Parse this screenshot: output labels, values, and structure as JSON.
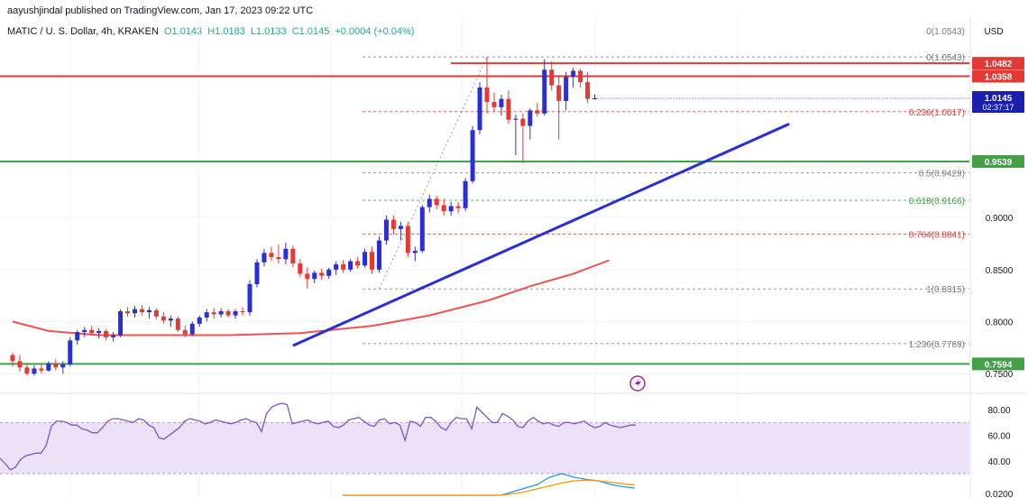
{
  "header": {
    "publisher": "aayushjindal published on TradingView.com, Jan 17, 2023 09:22 UTC",
    "symbol": "MATIC / U. S. Dollar, 4h, KRAKEN",
    "open": "O1.0143",
    "high": "H1.0183",
    "low": "L1.0133",
    "close": "C1.0145",
    "change": "+0.0004 (+0.04%)"
  },
  "colors": {
    "up": "#26a69a",
    "down": "#ef5350",
    "bull_candle": "#2a2ed6",
    "bear_candle": "#e53935",
    "resistance": "#e53935",
    "support": "#43a047",
    "trendline": "#2a2ed6",
    "moving_average": "#ef5350",
    "rsi": "#7e57c2",
    "rsi_band": "#ede1f7",
    "macd_line": "#2196f3",
    "signal_line": "#ff9800",
    "fib_red": "#e53935",
    "fib_green": "#43a047",
    "fib_gray": "#787b86"
  },
  "chart_data": {
    "type": "candlestick",
    "currency_label": "USD",
    "y_axis_ticks": [
      "0.9000",
      "0.8500",
      "0.8000",
      "0.7500"
    ],
    "ylim": [
      0.745,
      1.07
    ],
    "candles": [
      {
        "o": 0.768,
        "h": 0.77,
        "l": 0.757,
        "c": 0.762
      },
      {
        "o": 0.762,
        "h": 0.768,
        "l": 0.752,
        "c": 0.756
      },
      {
        "o": 0.756,
        "h": 0.76,
        "l": 0.748,
        "c": 0.75
      },
      {
        "o": 0.75,
        "h": 0.758,
        "l": 0.748,
        "c": 0.755
      },
      {
        "o": 0.755,
        "h": 0.76,
        "l": 0.75,
        "c": 0.753
      },
      {
        "o": 0.753,
        "h": 0.762,
        "l": 0.752,
        "c": 0.76
      },
      {
        "o": 0.76,
        "h": 0.764,
        "l": 0.753,
        "c": 0.756
      },
      {
        "o": 0.756,
        "h": 0.762,
        "l": 0.75,
        "c": 0.759
      },
      {
        "o": 0.759,
        "h": 0.785,
        "l": 0.757,
        "c": 0.782
      },
      {
        "o": 0.782,
        "h": 0.792,
        "l": 0.778,
        "c": 0.79
      },
      {
        "o": 0.79,
        "h": 0.795,
        "l": 0.785,
        "c": 0.792
      },
      {
        "o": 0.792,
        "h": 0.796,
        "l": 0.787,
        "c": 0.789
      },
      {
        "o": 0.789,
        "h": 0.794,
        "l": 0.784,
        "c": 0.791
      },
      {
        "o": 0.791,
        "h": 0.793,
        "l": 0.782,
        "c": 0.785
      },
      {
        "o": 0.785,
        "h": 0.79,
        "l": 0.781,
        "c": 0.787
      },
      {
        "o": 0.787,
        "h": 0.812,
        "l": 0.785,
        "c": 0.81
      },
      {
        "o": 0.81,
        "h": 0.814,
        "l": 0.805,
        "c": 0.808
      },
      {
        "o": 0.808,
        "h": 0.815,
        "l": 0.804,
        "c": 0.812
      },
      {
        "o": 0.812,
        "h": 0.816,
        "l": 0.806,
        "c": 0.809
      },
      {
        "o": 0.809,
        "h": 0.814,
        "l": 0.803,
        "c": 0.811
      },
      {
        "o": 0.811,
        "h": 0.813,
        "l": 0.802,
        "c": 0.805
      },
      {
        "o": 0.805,
        "h": 0.809,
        "l": 0.798,
        "c": 0.801
      },
      {
        "o": 0.801,
        "h": 0.806,
        "l": 0.795,
        "c": 0.803
      },
      {
        "o": 0.803,
        "h": 0.805,
        "l": 0.79,
        "c": 0.792
      },
      {
        "o": 0.792,
        "h": 0.796,
        "l": 0.785,
        "c": 0.788
      },
      {
        "o": 0.788,
        "h": 0.8,
        "l": 0.786,
        "c": 0.798
      },
      {
        "o": 0.798,
        "h": 0.806,
        "l": 0.795,
        "c": 0.804
      },
      {
        "o": 0.804,
        "h": 0.812,
        "l": 0.8,
        "c": 0.809
      },
      {
        "o": 0.809,
        "h": 0.813,
        "l": 0.803,
        "c": 0.807
      },
      {
        "o": 0.807,
        "h": 0.813,
        "l": 0.804,
        "c": 0.81
      },
      {
        "o": 0.81,
        "h": 0.812,
        "l": 0.804,
        "c": 0.806
      },
      {
        "o": 0.806,
        "h": 0.812,
        "l": 0.803,
        "c": 0.81
      },
      {
        "o": 0.81,
        "h": 0.814,
        "l": 0.806,
        "c": 0.809
      },
      {
        "o": 0.809,
        "h": 0.84,
        "l": 0.806,
        "c": 0.836
      },
      {
        "o": 0.836,
        "h": 0.86,
        "l": 0.833,
        "c": 0.857
      },
      {
        "o": 0.857,
        "h": 0.87,
        "l": 0.853,
        "c": 0.866
      },
      {
        "o": 0.866,
        "h": 0.872,
        "l": 0.858,
        "c": 0.862
      },
      {
        "o": 0.862,
        "h": 0.874,
        "l": 0.856,
        "c": 0.86
      },
      {
        "o": 0.86,
        "h": 0.876,
        "l": 0.855,
        "c": 0.87
      },
      {
        "o": 0.87,
        "h": 0.873,
        "l": 0.852,
        "c": 0.856
      },
      {
        "o": 0.856,
        "h": 0.86,
        "l": 0.843,
        "c": 0.846
      },
      {
        "o": 0.846,
        "h": 0.852,
        "l": 0.832,
        "c": 0.841
      },
      {
        "o": 0.841,
        "h": 0.849,
        "l": 0.837,
        "c": 0.847
      },
      {
        "o": 0.847,
        "h": 0.851,
        "l": 0.84,
        "c": 0.844
      },
      {
        "o": 0.844,
        "h": 0.852,
        "l": 0.841,
        "c": 0.85
      },
      {
        "o": 0.85,
        "h": 0.858,
        "l": 0.845,
        "c": 0.855
      },
      {
        "o": 0.855,
        "h": 0.859,
        "l": 0.847,
        "c": 0.85
      },
      {
        "o": 0.85,
        "h": 0.86,
        "l": 0.848,
        "c": 0.858
      },
      {
        "o": 0.858,
        "h": 0.862,
        "l": 0.851,
        "c": 0.854
      },
      {
        "o": 0.854,
        "h": 0.87,
        "l": 0.852,
        "c": 0.867
      },
      {
        "o": 0.867,
        "h": 0.872,
        "l": 0.846,
        "c": 0.85
      },
      {
        "o": 0.85,
        "h": 0.882,
        "l": 0.847,
        "c": 0.878
      },
      {
        "o": 0.878,
        "h": 0.902,
        "l": 0.874,
        "c": 0.898
      },
      {
        "o": 0.898,
        "h": 0.902,
        "l": 0.884,
        "c": 0.889
      },
      {
        "o": 0.889,
        "h": 0.896,
        "l": 0.878,
        "c": 0.892
      },
      {
        "o": 0.892,
        "h": 0.896,
        "l": 0.862,
        "c": 0.866
      },
      {
        "o": 0.866,
        "h": 0.872,
        "l": 0.858,
        "c": 0.868
      },
      {
        "o": 0.868,
        "h": 0.912,
        "l": 0.866,
        "c": 0.91
      },
      {
        "o": 0.91,
        "h": 0.922,
        "l": 0.905,
        "c": 0.918
      },
      {
        "o": 0.918,
        "h": 0.921,
        "l": 0.908,
        "c": 0.912
      },
      {
        "o": 0.912,
        "h": 0.918,
        "l": 0.902,
        "c": 0.906
      },
      {
        "o": 0.906,
        "h": 0.915,
        "l": 0.902,
        "c": 0.911
      },
      {
        "o": 0.911,
        "h": 0.915,
        "l": 0.904,
        "c": 0.909
      },
      {
        "o": 0.909,
        "h": 0.938,
        "l": 0.906,
        "c": 0.935
      },
      {
        "o": 0.935,
        "h": 0.988,
        "l": 0.933,
        "c": 0.984
      },
      {
        "o": 0.984,
        "h": 1.03,
        "l": 0.98,
        "c": 1.025
      },
      {
        "o": 1.025,
        "h": 1.054,
        "l": 1.0,
        "c": 1.011
      },
      {
        "o": 1.011,
        "h": 1.02,
        "l": 1.002,
        "c": 1.006
      },
      {
        "o": 1.006,
        "h": 1.018,
        "l": 0.998,
        "c": 1.014
      },
      {
        "o": 1.014,
        "h": 1.022,
        "l": 0.99,
        "c": 0.994
      },
      {
        "o": 0.994,
        "h": 0.999,
        "l": 0.96,
        "c": 0.995
      },
      {
        "o": 0.995,
        "h": 1.0,
        "l": 0.952,
        "c": 0.988
      },
      {
        "o": 0.988,
        "h": 1.005,
        "l": 0.975,
        "c": 1.003
      },
      {
        "o": 1.003,
        "h": 1.01,
        "l": 0.997,
        "c": 1.0
      },
      {
        "o": 1.0,
        "h": 1.052,
        "l": 0.998,
        "c": 1.042
      },
      {
        "o": 1.042,
        "h": 1.05,
        "l": 1.022,
        "c": 1.027
      },
      {
        "o": 1.027,
        "h": 1.035,
        "l": 0.975,
        "c": 1.012
      },
      {
        "o": 1.012,
        "h": 1.04,
        "l": 1.003,
        "c": 1.035
      },
      {
        "o": 1.035,
        "h": 1.044,
        "l": 1.025,
        "c": 1.041
      },
      {
        "o": 1.041,
        "h": 1.043,
        "l": 1.025,
        "c": 1.03
      },
      {
        "o": 1.03,
        "h": 1.04,
        "l": 1.01,
        "c": 1.014
      },
      {
        "o": 1.0143,
        "h": 1.0183,
        "l": 1.0133,
        "c": 1.0145
      }
    ],
    "horizontal_levels": [
      {
        "name": "resistance-top",
        "value": 1.0482,
        "label": "1.0482",
        "color": "#e53935"
      },
      {
        "name": "resistance",
        "value": 1.0358,
        "label": "1.0358",
        "color": "#e53935"
      },
      {
        "name": "support-upper",
        "value": 0.9539,
        "label": "0.9539",
        "color": "#43a047"
      },
      {
        "name": "support-lower",
        "value": 0.7594,
        "label": "0.7594",
        "color": "#43a047"
      }
    ],
    "current_price": {
      "value": 1.0145,
      "label": "1.0145",
      "countdown": "02:37:17"
    },
    "fibonacci": [
      {
        "label": "0(1.0543)",
        "value": 1.0543,
        "color": "#787b86"
      },
      {
        "label": "0.236(1.0017)",
        "value": 1.0017,
        "color": "#e53935"
      },
      {
        "label": "0.5(0.9429)",
        "value": 0.9429,
        "color": "#787b86"
      },
      {
        "label": "0.618(0.9166)",
        "value": 0.9166,
        "color": "#43a047"
      },
      {
        "label": "0.764(0.8841)",
        "value": 0.8841,
        "color": "#e53935"
      },
      {
        "label": "1(0.8315)",
        "value": 0.8315,
        "color": "#787b86"
      },
      {
        "label": "1.236(0.7789)",
        "value": 0.7789,
        "color": "#787b86"
      }
    ],
    "trendline": {
      "x1": 39,
      "y1": 0.777,
      "x2": 93,
      "y2": 0.9435
    },
    "moving_average": [
      {
        "i": 0,
        "v": 0.8
      },
      {
        "i": 5,
        "v": 0.791
      },
      {
        "i": 12,
        "v": 0.787
      },
      {
        "i": 20,
        "v": 0.787
      },
      {
        "i": 30,
        "v": 0.787
      },
      {
        "i": 40,
        "v": 0.789
      },
      {
        "i": 50,
        "v": 0.796
      },
      {
        "i": 58,
        "v": 0.806
      },
      {
        "i": 66,
        "v": 0.82
      },
      {
        "i": 72,
        "v": 0.834
      },
      {
        "i": 78,
        "v": 0.846
      },
      {
        "i": 83,
        "v": 0.859
      }
    ],
    "rsi": {
      "y_ticks": [
        "80.00",
        "60.00",
        "40.00"
      ],
      "ylim": [
        30,
        90
      ],
      "band": [
        30,
        70
      ],
      "values": [
        42,
        38,
        33,
        35,
        41,
        44,
        45,
        46,
        46,
        52,
        67,
        71,
        71,
        70,
        68,
        68,
        65,
        64,
        62,
        62,
        66,
        71,
        73,
        73,
        72,
        71,
        70,
        73,
        72,
        68,
        66,
        58,
        57,
        60,
        63,
        66,
        71,
        73,
        72,
        71,
        69,
        70,
        72,
        71,
        70,
        69,
        70,
        72,
        73,
        71,
        70,
        63,
        77,
        82,
        84,
        85,
        84,
        69,
        70,
        71,
        72,
        70,
        69,
        70,
        71,
        67,
        66,
        68,
        72,
        73,
        74,
        71,
        68,
        67,
        72,
        73,
        69,
        70,
        68,
        56,
        71,
        70,
        67,
        74,
        74,
        71,
        66,
        64,
        70,
        74,
        73,
        73,
        65,
        82,
        78,
        74,
        70,
        70,
        77,
        75,
        72,
        67,
        66,
        71,
        74,
        71,
        69,
        70,
        68,
        67,
        70,
        70,
        69,
        70,
        71,
        68,
        66,
        67,
        70,
        68,
        67,
        66,
        67,
        68,
        68
      ]
    },
    "macd": {
      "y_ticks": [
        "0.0200"
      ],
      "macd_line": [
        0,
        0,
        0,
        0,
        0,
        0,
        0,
        0,
        0,
        0,
        0,
        0,
        0,
        0,
        0.5,
        1,
        1.5,
        2.5,
        3,
        2.5,
        2.2,
        2,
        1.5,
        1.2,
        1
      ],
      "signal_line": [
        0,
        0,
        0,
        0,
        0,
        0,
        0,
        0,
        0,
        0,
        0,
        0,
        0,
        0,
        0.2,
        0.5,
        0.9,
        1.3,
        1.7,
        2.0,
        2.1,
        2.0,
        1.8,
        1.6,
        1.4
      ]
    }
  },
  "header_icons": {
    "alert": "lightning-icon"
  }
}
